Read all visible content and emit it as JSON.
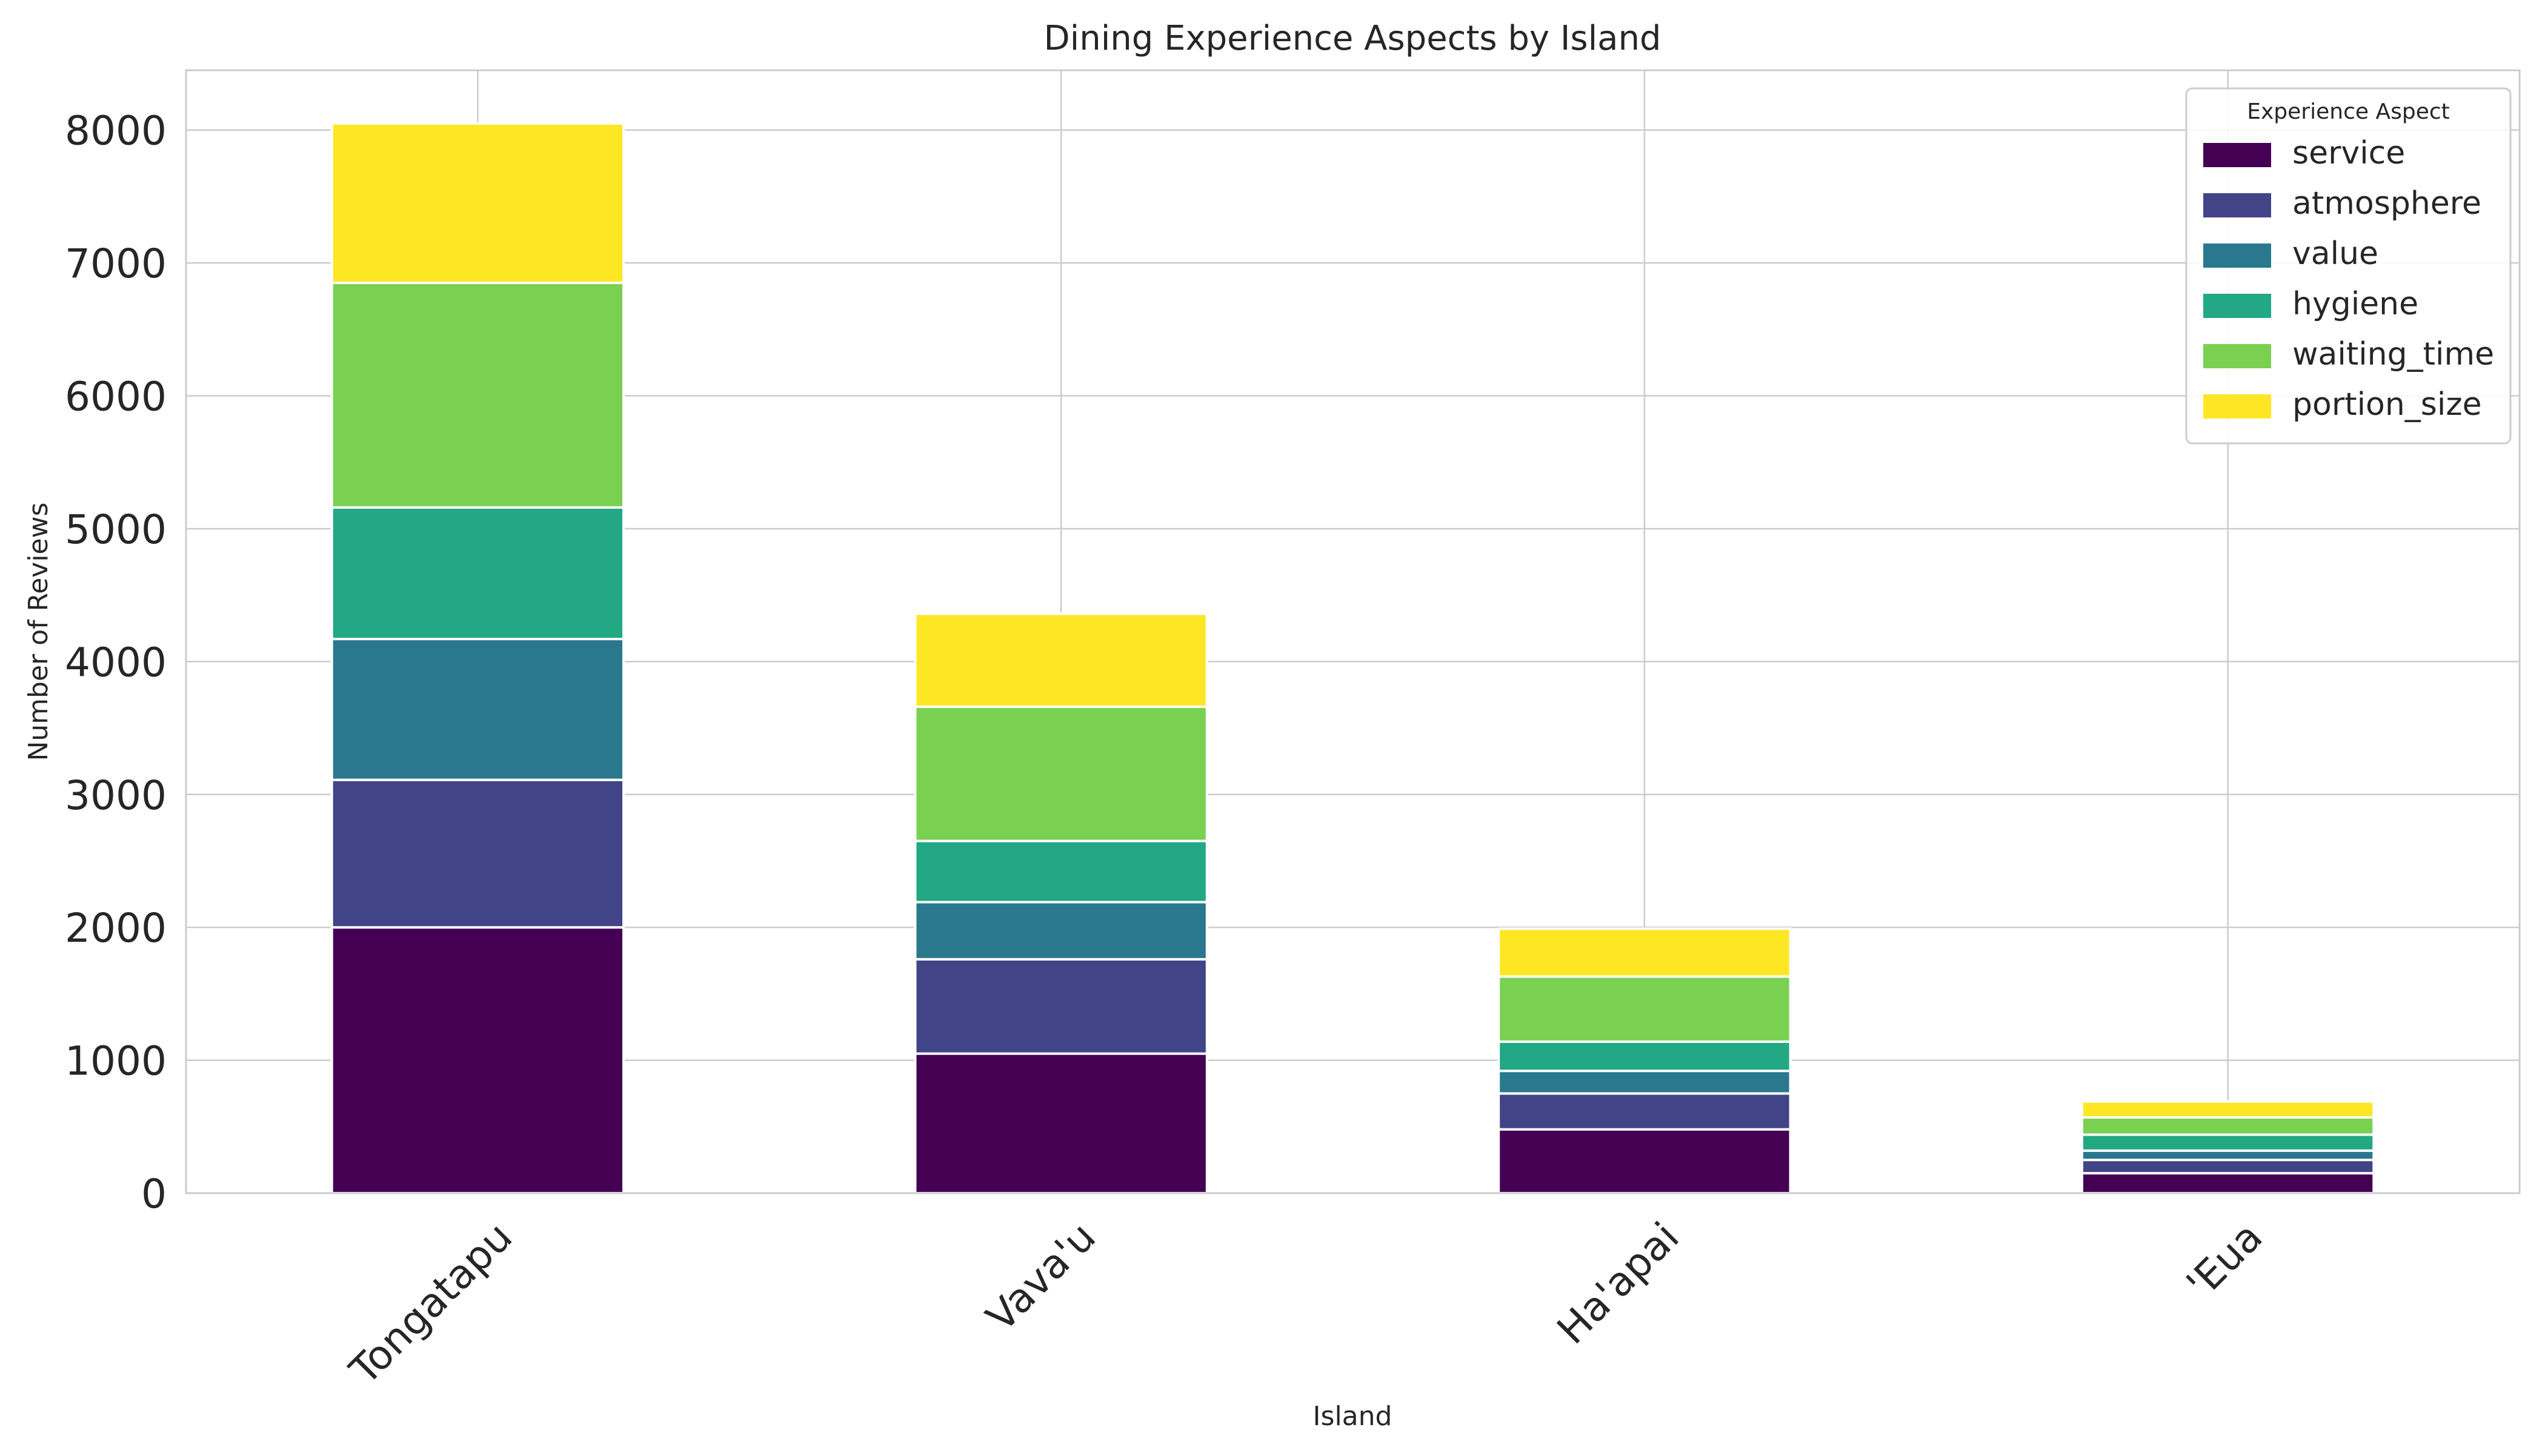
{
  "chart_data": {
    "type": "bar",
    "stacked": true,
    "title": "Dining Experience Aspects by Island",
    "xlabel": "Island",
    "ylabel": "Number of Reviews",
    "ylim": [
      0,
      8450
    ],
    "yticks": [
      0,
      1000,
      2000,
      3000,
      4000,
      5000,
      6000,
      7000,
      8000
    ],
    "grid": true,
    "legend": {
      "title": "Experience Aspect",
      "position": "top-right"
    },
    "categories": [
      "Tongatapu",
      "Vava'u",
      "Ha'apai",
      "'Eua"
    ],
    "series": [
      {
        "name": "service",
        "color": "#440154",
        "values": [
          2000,
          1050,
          480,
          150
        ]
      },
      {
        "name": "atmosphere",
        "color": "#414487",
        "values": [
          1110,
          710,
          270,
          100
        ]
      },
      {
        "name": "value",
        "color": "#2a788e",
        "values": [
          1060,
          430,
          170,
          70
        ]
      },
      {
        "name": "hygiene",
        "color": "#22a884",
        "values": [
          990,
          460,
          220,
          120
        ]
      },
      {
        "name": "waiting_time",
        "color": "#7ad151",
        "values": [
          1690,
          1010,
          490,
          130
        ]
      },
      {
        "name": "portion_size",
        "color": "#fde725",
        "values": [
          1200,
          700,
          360,
          120
        ]
      }
    ]
  }
}
